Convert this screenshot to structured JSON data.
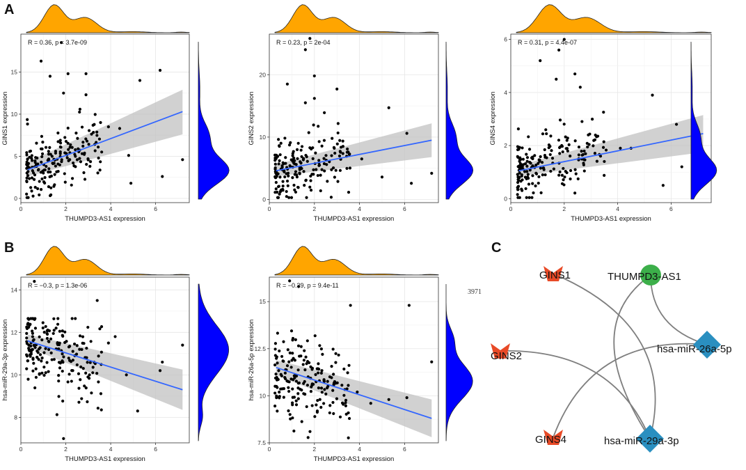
{
  "panel_labels": {
    "a": "A",
    "b": "B",
    "c": "C"
  },
  "stray_text": "3971",
  "colors": {
    "density_top": "#FFA500",
    "density_right": "#0000FF",
    "fit_line": "#3366FF",
    "ci_band": "#BEBEBE",
    "point": "#000000",
    "gene_node": "#E84A27",
    "lnc_node": "#3CAF4A",
    "mirna_node": "#2A8FC0",
    "edge": "#7F7F7F"
  },
  "chart_data": [
    {
      "type": "scatter",
      "id": "gins1",
      "xlabel": "THUMPD3-AS1 expression",
      "ylabel": "GINS1 expression",
      "stat_text": "R = 0.36, p = 3.7e-09",
      "xlim": [
        0,
        7.5
      ],
      "ylim": [
        -0.5,
        19.5
      ],
      "xticks": [
        0,
        2,
        4,
        6
      ],
      "yticks": [
        0,
        5,
        10,
        15
      ],
      "fit": {
        "x": [
          0.3,
          7.2
        ],
        "y": [
          3.4,
          10.3
        ]
      },
      "ci": {
        "lower": [
          2.6,
          7.6
        ],
        "upper": [
          4.3,
          12.9
        ]
      },
      "outliers": [
        [
          1.8,
          18.5
        ],
        [
          6.2,
          15.2
        ],
        [
          5.3,
          14
        ],
        [
          4.8,
          5.1
        ],
        [
          3.9,
          8.5
        ],
        [
          4.4,
          8.3
        ],
        [
          4.9,
          1.8
        ],
        [
          6.3,
          2.6
        ],
        [
          7.2,
          4.6
        ],
        [
          1.9,
          12.5
        ],
        [
          2.9,
          12.3
        ],
        [
          2.9,
          14.8
        ],
        [
          2.1,
          14.8
        ],
        [
          0.9,
          16.3
        ],
        [
          1.3,
          14.5
        ]
      ],
      "n_cloud": 190,
      "seed": 11,
      "slope": 1.0,
      "intercept": 3.1,
      "noise": 2.4,
      "xmax_cloud": 3.6
    },
    {
      "type": "scatter",
      "id": "gins2",
      "xlabel": "THUMPD3-AS1 expression",
      "ylabel": "GINS2 expression",
      "stat_text": "R = 0.23, p = 2e-04",
      "xlim": [
        0,
        7.5
      ],
      "ylim": [
        -0.5,
        26.5
      ],
      "xticks": [
        0,
        2,
        4,
        6
      ],
      "yticks": [
        0,
        10,
        20
      ],
      "fit": {
        "x": [
          0.3,
          7.2
        ],
        "y": [
          4.6,
          9.5
        ]
      },
      "ci": {
        "lower": [
          3.7,
          6.8
        ],
        "upper": [
          5.6,
          12.2
        ]
      },
      "outliers": [
        [
          1.8,
          25.8
        ],
        [
          1.6,
          24
        ],
        [
          2,
          19.8
        ],
        [
          3,
          17.7
        ],
        [
          5.3,
          14.7
        ],
        [
          6.1,
          10.6
        ],
        [
          7.2,
          4.2
        ],
        [
          6.3,
          2.6
        ],
        [
          5,
          3.6
        ],
        [
          4.1,
          6.5
        ],
        [
          3.5,
          7.6
        ],
        [
          2,
          16.2
        ],
        [
          1.6,
          15.5
        ],
        [
          0.8,
          18.5
        ]
      ],
      "n_cloud": 190,
      "seed": 23,
      "slope": 0.7,
      "intercept": 4.4,
      "noise": 3.2,
      "xmax_cloud": 3.6
    },
    {
      "type": "scatter",
      "id": "gins4",
      "xlabel": "THUMPD3-AS1 expression",
      "ylabel": "GINS4 expression",
      "stat_text": "R = 0.31, p = 4.4e-07",
      "xlim": [
        0,
        7.5
      ],
      "ylim": [
        -0.15,
        6.2
      ],
      "xticks": [
        0,
        2,
        4,
        6
      ],
      "yticks": [
        0,
        2,
        4,
        6
      ],
      "fit": {
        "x": [
          0.3,
          7.2
        ],
        "y": [
          1.05,
          2.45
        ]
      },
      "ci": {
        "lower": [
          0.85,
          1.75
        ],
        "upper": [
          1.25,
          3.15
        ]
      },
      "outliers": [
        [
          2,
          6
        ],
        [
          1.8,
          5.6
        ],
        [
          1.1,
          5.2
        ],
        [
          1.7,
          4.5
        ],
        [
          2.6,
          4.2
        ],
        [
          2.4,
          4.7
        ],
        [
          5.3,
          3.9
        ],
        [
          6.2,
          2.8
        ],
        [
          6.4,
          1.2
        ],
        [
          7.2,
          1
        ],
        [
          5.7,
          0.5
        ],
        [
          4.5,
          1.9
        ],
        [
          4.1,
          1.9
        ],
        [
          3.5,
          1.4
        ]
      ],
      "n_cloud": 190,
      "seed": 37,
      "slope": 0.25,
      "intercept": 1.0,
      "noise": 0.75,
      "xmax_cloud": 3.6
    },
    {
      "type": "scatter",
      "id": "mir29",
      "xlabel": "THUMPD3-AS1 expression",
      "ylabel": "hsa-miR-29a-3p expression",
      "stat_text": "R = −0.3, p = 1.3e-06",
      "xlim": [
        0,
        7.5
      ],
      "ylim": [
        6.8,
        14.6
      ],
      "xticks": [
        0,
        2,
        4,
        6
      ],
      "yticks": [
        8,
        10,
        12,
        14
      ],
      "fit": {
        "x": [
          0.3,
          7.2
        ],
        "y": [
          11.6,
          9.3
        ]
      },
      "ci": {
        "lower": [
          11.3,
          8.35
        ],
        "upper": [
          11.9,
          10.25
        ]
      },
      "outliers": [
        [
          0.6,
          14.4
        ],
        [
          1.9,
          7
        ],
        [
          3.4,
          13.5
        ],
        [
          3.9,
          11.5
        ],
        [
          4.2,
          11.8
        ],
        [
          4.7,
          10
        ],
        [
          5.2,
          8.3
        ],
        [
          6.2,
          10.2
        ],
        [
          6.3,
          10.6
        ],
        [
          7.2,
          11.4
        ],
        [
          2.4,
          10.9
        ],
        [
          2.9,
          10.8
        ],
        [
          3.2,
          10.1
        ]
      ],
      "n_cloud": 190,
      "seed": 53,
      "slope": -0.35,
      "intercept": 11.6,
      "noise": 1.2,
      "xmax_cloud": 3.6
    },
    {
      "type": "scatter",
      "id": "mir26",
      "xlabel": "THUMPD3-AS1 expression",
      "ylabel": "hsa-miR-26a-5p expression",
      "stat_text": "R = −0.39, p = 9.4e-11",
      "xlim": [
        0,
        7.5
      ],
      "ylim": [
        7.5,
        16.3
      ],
      "xticks": [
        0,
        2,
        4,
        6
      ],
      "yticks": [
        7.5,
        10,
        12.5,
        15
      ],
      "fit": {
        "x": [
          0.3,
          7.2
        ],
        "y": [
          11.5,
          8.8
        ]
      },
      "ci": {
        "lower": [
          11.1,
          7.8
        ],
        "upper": [
          11.9,
          9.8
        ]
      },
      "outliers": [
        [
          0.9,
          16.1
        ],
        [
          1.3,
          15.8
        ],
        [
          3.6,
          14.8
        ],
        [
          6.2,
          14.8
        ],
        [
          5.3,
          9.8
        ],
        [
          6.1,
          9.9
        ],
        [
          7.2,
          11.8
        ],
        [
          4.5,
          9.6
        ],
        [
          3.9,
          10.2
        ],
        [
          2.6,
          10.5
        ]
      ],
      "n_cloud": 190,
      "seed": 71,
      "slope": -0.35,
      "intercept": 11.3,
      "noise": 1.3,
      "xmax_cloud": 3.6
    }
  ],
  "network": {
    "nodes": [
      {
        "id": "GINS1",
        "label": "GINS1",
        "kind": "gene"
      },
      {
        "id": "THUMPD3-AS1",
        "label": "THUMPD3-AS1",
        "kind": "lncRNA"
      },
      {
        "id": "hsa-miR-26a-5p",
        "label": "hsa-miR-26a-5p",
        "kind": "miRNA"
      },
      {
        "id": "GINS2",
        "label": "GINS2",
        "kind": "gene"
      },
      {
        "id": "GINS4",
        "label": "GINS4",
        "kind": "gene"
      },
      {
        "id": "hsa-miR-29a-3p",
        "label": "hsa-miR-29a-3p",
        "kind": "miRNA"
      }
    ],
    "edges": [
      [
        "THUMPD3-AS1",
        "hsa-miR-26a-5p"
      ],
      [
        "THUMPD3-AS1",
        "hsa-miR-29a-3p"
      ],
      [
        "GINS1",
        "hsa-miR-29a-3p"
      ],
      [
        "GINS2",
        "hsa-miR-29a-3p"
      ],
      [
        "GINS4",
        "hsa-miR-26a-5p"
      ]
    ]
  }
}
